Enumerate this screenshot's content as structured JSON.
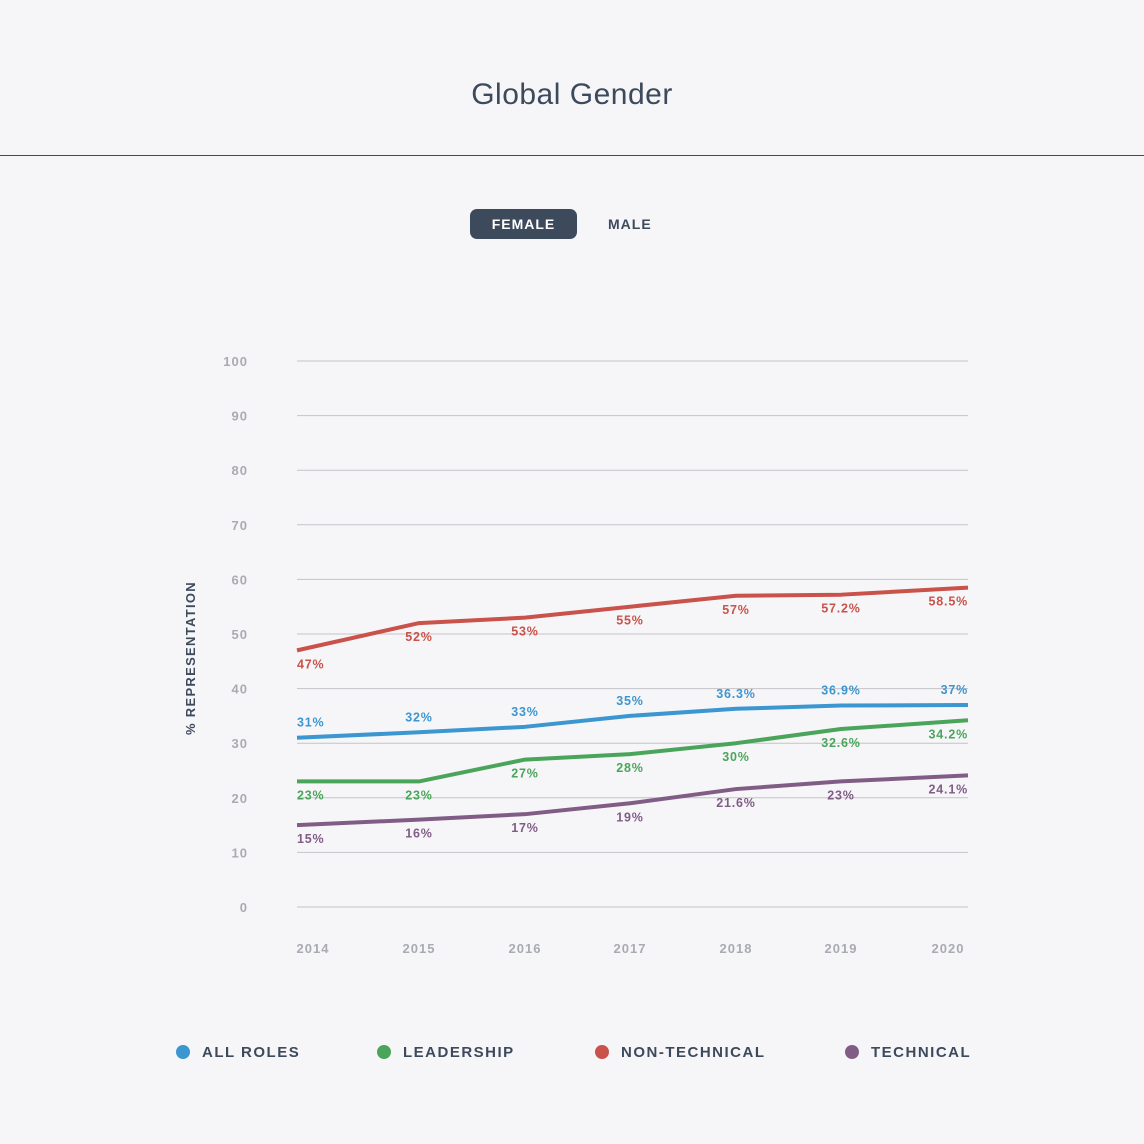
{
  "header": {
    "title": "Global Gender"
  },
  "toggle": {
    "female_label": "FEMALE",
    "male_label": "MALE",
    "selected": "FEMALE"
  },
  "colors": {
    "all_roles": "#3c96cf",
    "leadership": "#4aa55a",
    "non_technical": "#c9524a",
    "technical": "#815d86",
    "grid": "#c4c4c8",
    "tick": "#a9abb2",
    "text": "#3d4a5c"
  },
  "chart_data": {
    "type": "line",
    "ylabel": "% REPRESENTATION",
    "xlabel": "",
    "ylim": [
      0,
      100
    ],
    "yticks": [
      "0",
      "10",
      "20",
      "30",
      "40",
      "50",
      "60",
      "70",
      "80",
      "90",
      "100"
    ],
    "categories": [
      "2014",
      "2015",
      "2016",
      "2017",
      "2018",
      "2019",
      "2020"
    ],
    "grid": true,
    "legend_position": "bottom",
    "series": [
      {
        "key": "non_technical",
        "name": "NON-TECHNICAL",
        "values": [
          47,
          52,
          53,
          55,
          57,
          57.2,
          58.5
        ],
        "labels": [
          "47%",
          "52%",
          "53%",
          "55%",
          "57%",
          "57.2%",
          "58.5%"
        ]
      },
      {
        "key": "all_roles",
        "name": "ALL ROLES",
        "values": [
          31,
          32,
          33,
          35,
          36.3,
          36.9,
          37
        ],
        "labels": [
          "31%",
          "32%",
          "33%",
          "35%",
          "36.3%",
          "36.9%",
          "37%"
        ]
      },
      {
        "key": "leadership",
        "name": "LEADERSHIP",
        "values": [
          23,
          23,
          27,
          28,
          30,
          32.6,
          34.2
        ],
        "labels": [
          "23%",
          "23%",
          "27%",
          "28%",
          "30%",
          "32.6%",
          "34.2%"
        ]
      },
      {
        "key": "technical",
        "name": "TECHNICAL",
        "values": [
          15,
          16,
          17,
          19,
          21.6,
          23,
          24.1
        ],
        "labels": [
          "15%",
          "16%",
          "17%",
          "19%",
          "21.6%",
          "23%",
          "24.1%"
        ]
      }
    ]
  },
  "legend": [
    {
      "key": "all_roles",
      "label": "ALL ROLES"
    },
    {
      "key": "leadership",
      "label": "LEADERSHIP"
    },
    {
      "key": "non_technical",
      "label": "NON-TECHNICAL"
    },
    {
      "key": "technical",
      "label": "TECHNICAL"
    }
  ]
}
